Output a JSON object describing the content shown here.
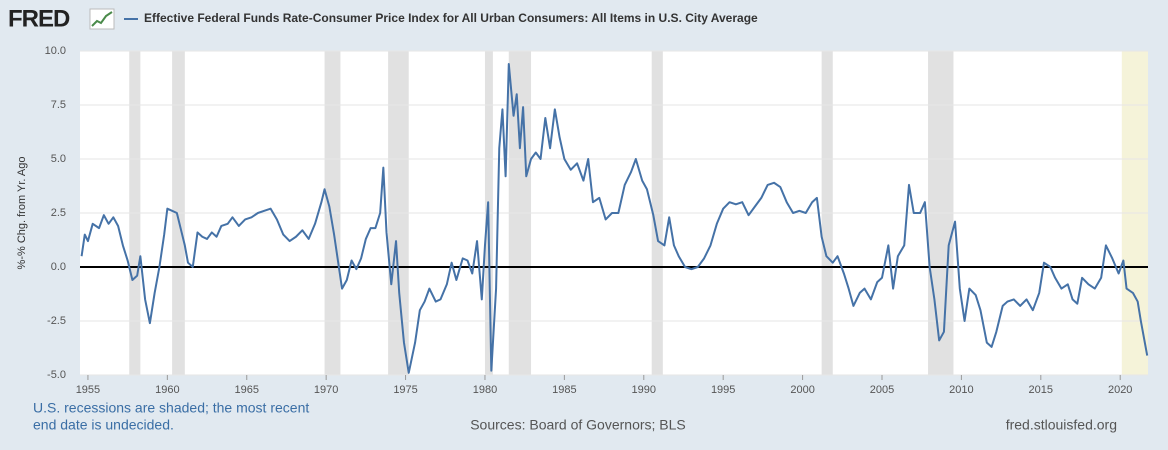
{
  "logo": "FRED",
  "chart_data": {
    "type": "line",
    "title": "Effective Federal Funds Rate-Consumer Price Index for All Urban Consumers: All Items in U.S. City Average",
    "ylabel": "%-% Chg. from Yr. Ago",
    "note": [
      "U.S. recessions are shaded; the most recent",
      "end date is undecided."
    ],
    "source": "Sources: Board of Governors; BLS",
    "site": "fred.stlouisfed.org",
    "xlim": [
      1954.5,
      2021.75
    ],
    "xticks": [
      1955,
      1960,
      1965,
      1970,
      1975,
      1980,
      1985,
      1990,
      1995,
      2000,
      2005,
      2010,
      2015,
      2020
    ],
    "ylim": [
      -5,
      10
    ],
    "yticks": [
      {
        "value": 10,
        "label": "10.0"
      },
      7.5,
      {
        "value": 5,
        "label": "5.0"
      },
      2.5,
      {
        "value": 0,
        "label": "0.0"
      },
      -2.5,
      {
        "value": -5,
        "label": "-5.0"
      }
    ],
    "grid": true,
    "recession_color": "#e1e1e1",
    "open_recession_color": "#f5f3d9",
    "recessions": [
      {
        "start": 1957.6,
        "end": 1958.3
      },
      {
        "start": 1960.3,
        "end": 1961.1
      },
      {
        "start": 1969.9,
        "end": 1970.9
      },
      {
        "start": 1973.9,
        "end": 1975.2
      },
      {
        "start": 1980.0,
        "end": 1980.5
      },
      {
        "start": 1981.5,
        "end": 1982.9
      },
      {
        "start": 1990.5,
        "end": 1991.2
      },
      {
        "start": 2001.2,
        "end": 2001.9
      },
      {
        "start": 2007.9,
        "end": 2009.5
      },
      {
        "start": 2020.1,
        "end": null
      }
    ],
    "x": [
      1954.6,
      1954.8,
      1955.0,
      1955.3,
      1955.7,
      1956.0,
      1956.3,
      1956.6,
      1956.9,
      1957.2,
      1957.5,
      1957.8,
      1958.1,
      1958.3,
      1958.6,
      1958.9,
      1959.2,
      1959.5,
      1959.8,
      1960.0,
      1960.3,
      1960.6,
      1960.9,
      1961.1,
      1961.3,
      1961.6,
      1961.9,
      1962.2,
      1962.5,
      1962.8,
      1963.1,
      1963.4,
      1963.8,
      1964.1,
      1964.5,
      1964.9,
      1965.3,
      1965.7,
      1966.1,
      1966.5,
      1966.9,
      1967.3,
      1967.7,
      1968.1,
      1968.5,
      1968.9,
      1969.3,
      1969.7,
      1969.9,
      1970.2,
      1970.5,
      1970.8,
      1971.0,
      1971.3,
      1971.6,
      1971.9,
      1972.2,
      1972.5,
      1972.8,
      1973.1,
      1973.4,
      1973.6,
      1973.8,
      1974.1,
      1974.4,
      1974.6,
      1974.9,
      1975.2,
      1975.6,
      1975.9,
      1976.2,
      1976.5,
      1976.9,
      1977.2,
      1977.6,
      1977.9,
      1978.2,
      1978.6,
      1978.9,
      1979.2,
      1979.5,
      1979.8,
      1980.0,
      1980.2,
      1980.4,
      1980.7,
      1980.9,
      1981.1,
      1981.3,
      1981.5,
      1981.8,
      1982.0,
      1982.2,
      1982.4,
      1982.6,
      1982.9,
      1983.2,
      1983.5,
      1983.8,
      1984.1,
      1984.4,
      1984.7,
      1985.0,
      1985.4,
      1985.8,
      1986.2,
      1986.5,
      1986.8,
      1987.2,
      1987.6,
      1988.0,
      1988.4,
      1988.8,
      1989.2,
      1989.5,
      1989.9,
      1990.2,
      1990.6,
      1990.9,
      1991.3,
      1991.6,
      1991.9,
      1992.2,
      1992.6,
      1993.0,
      1993.4,
      1993.8,
      1994.2,
      1994.6,
      1995.0,
      1995.4,
      1995.8,
      1996.2,
      1996.6,
      1997.0,
      1997.4,
      1997.8,
      1998.2,
      1998.6,
      1999.0,
      1999.4,
      1999.8,
      2000.2,
      2000.6,
      2000.9,
      2001.2,
      2001.5,
      2001.9,
      2002.2,
      2002.6,
      2002.9,
      2003.2,
      2003.6,
      2003.9,
      2004.3,
      2004.7,
      2005.0,
      2005.4,
      2005.7,
      2006.0,
      2006.4,
      2006.7,
      2007.0,
      2007.4,
      2007.7,
      2008.0,
      2008.3,
      2008.6,
      2008.9,
      2009.2,
      2009.6,
      2009.9,
      2010.2,
      2010.5,
      2010.9,
      2011.2,
      2011.6,
      2011.9,
      2012.2,
      2012.6,
      2012.9,
      2013.3,
      2013.7,
      2014.1,
      2014.5,
      2014.9,
      2015.2,
      2015.6,
      2015.9,
      2016.3,
      2016.7,
      2017.0,
      2017.3,
      2017.6,
      2018.0,
      2018.4,
      2018.8,
      2019.1,
      2019.5,
      2019.9,
      2020.2,
      2020.4,
      2020.8,
      2021.1,
      2021.3,
      2021.7
    ],
    "series": [
      {
        "name": "Effective Federal Funds Rate-Consumer Price Index for All Urban Consumers: All Items in U.S. City Average",
        "color": "#4572a7",
        "values": [
          0.5,
          1.5,
          1.2,
          2.0,
          1.8,
          2.4,
          2.0,
          2.3,
          1.9,
          1.0,
          0.3,
          -0.6,
          -0.4,
          0.5,
          -1.5,
          -2.6,
          -1.2,
          0.0,
          1.5,
          2.7,
          2.6,
          2.5,
          1.6,
          1.0,
          0.2,
          0.0,
          1.6,
          1.4,
          1.3,
          1.6,
          1.4,
          1.9,
          2.0,
          2.3,
          1.9,
          2.2,
          2.3,
          2.5,
          2.6,
          2.7,
          2.2,
          1.5,
          1.2,
          1.4,
          1.7,
          1.3,
          2.0,
          3.0,
          3.6,
          2.8,
          1.5,
          0.0,
          -1.0,
          -0.6,
          0.3,
          -0.1,
          0.4,
          1.3,
          1.8,
          1.8,
          2.5,
          4.6,
          1.6,
          -0.8,
          1.2,
          -1.2,
          -3.5,
          -4.9,
          -3.5,
          -2.0,
          -1.6,
          -1.0,
          -1.6,
          -1.5,
          -0.8,
          0.2,
          -0.6,
          0.4,
          0.3,
          -0.3,
          1.2,
          -1.5,
          1.0,
          3.0,
          -4.8,
          -1.0,
          5.5,
          7.3,
          4.2,
          9.4,
          7.0,
          8.0,
          5.5,
          7.4,
          4.2,
          5.0,
          5.3,
          5.0,
          6.9,
          5.5,
          7.3,
          6.0,
          5.0,
          4.5,
          4.8,
          4.0,
          5.0,
          3.0,
          3.2,
          2.2,
          2.5,
          2.5,
          3.8,
          4.4,
          5.0,
          4.0,
          3.6,
          2.4,
          1.2,
          1.0,
          2.3,
          1.0,
          0.5,
          0.0,
          -0.1,
          0.0,
          0.4,
          1.0,
          2.0,
          2.7,
          3.0,
          2.9,
          3.0,
          2.4,
          2.8,
          3.2,
          3.8,
          3.9,
          3.7,
          3.0,
          2.5,
          2.6,
          2.5,
          3.0,
          3.2,
          1.4,
          0.5,
          0.2,
          0.5,
          -0.3,
          -1.0,
          -1.8,
          -1.2,
          -1.0,
          -1.5,
          -0.7,
          -0.5,
          1.0,
          -1.0,
          0.5,
          1.0,
          3.8,
          2.5,
          2.5,
          3.0,
          0.0,
          -1.5,
          -3.4,
          -3.0,
          1.0,
          2.1,
          -1.0,
          -2.5,
          -1.0,
          -1.3,
          -2.0,
          -3.5,
          -3.7,
          -3.0,
          -1.8,
          -1.6,
          -1.5,
          -1.8,
          -1.5,
          -2.0,
          -1.2,
          0.2,
          0.0,
          -0.5,
          -1.0,
          -0.8,
          -1.5,
          -1.7,
          -0.5,
          -0.8,
          -1.0,
          -0.5,
          1.0,
          0.4,
          -0.3,
          0.3,
          -1.0,
          -1.2,
          -1.6,
          -2.5,
          -4.1
        ]
      }
    ]
  }
}
